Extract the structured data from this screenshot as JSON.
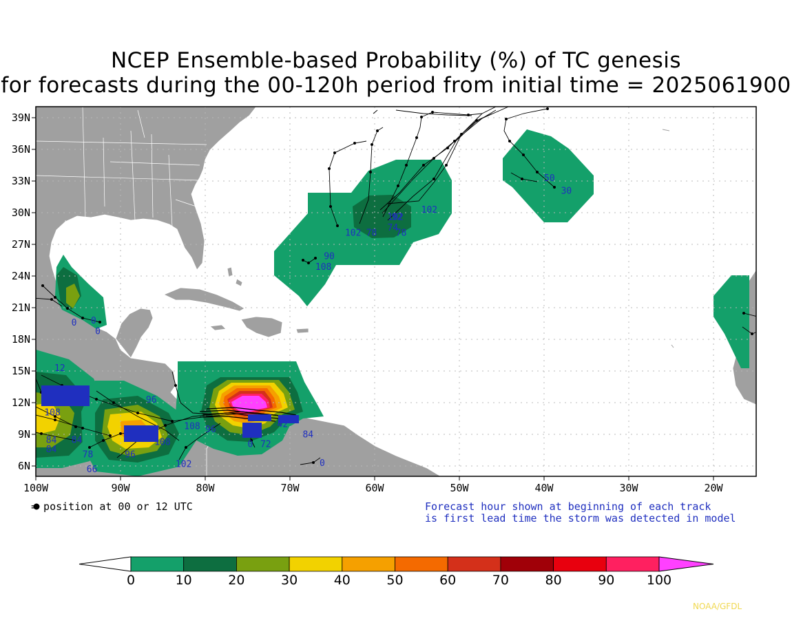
{
  "title_line1": "NCEP Ensemble-based Probability (%) of TC genesis",
  "title_line2": "for forecasts during the 00-120h period from initial time = 2025061900",
  "lat_labels": [
    "39N",
    "36N",
    "33N",
    "30N",
    "27N",
    "24N",
    "21N",
    "18N",
    "15N",
    "12N",
    "9N",
    "6N"
  ],
  "lon_labels": [
    "100W",
    "90W",
    "80W",
    "70W",
    "60W",
    "50W",
    "40W",
    "30W",
    "20W"
  ],
  "legend_note": "= position at 00 or 12 UTC",
  "forecast_note_line1": "Forecast hour shown at beginning of each track",
  "forecast_note_line2": "is first lead time the storm was detected in model",
  "colorbar": {
    "labels": [
      "0",
      "10",
      "20",
      "30",
      "40",
      "50",
      "60",
      "70",
      "80",
      "90",
      "100"
    ],
    "colors": [
      "#ffffff",
      "#14a06a",
      "#0d6e40",
      "#79a010",
      "#f2d200",
      "#f5a000",
      "#f46a00",
      "#d4301a",
      "#a00008",
      "#e8000e",
      "#ff2060",
      "#ff40ff"
    ]
  },
  "credit": "NOAA/GFDL",
  "track_labels": [
    {
      "text": "102",
      "lon": -63.5,
      "lat": 27.8
    },
    {
      "text": "78",
      "lon": -61.0,
      "lat": 27.8
    },
    {
      "text": "102",
      "lon": -58.5,
      "lat": 29.3
    },
    {
      "text": "92",
      "lon": -58.0,
      "lat": 29.3
    },
    {
      "text": "102",
      "lon": -54.5,
      "lat": 30.0
    },
    {
      "text": "74",
      "lon": -58.5,
      "lat": 28.3
    },
    {
      "text": "78",
      "lon": -57.5,
      "lat": 27.8
    },
    {
      "text": "50",
      "lon": -40.0,
      "lat": 33.0
    },
    {
      "text": "30",
      "lon": -38.0,
      "lat": 31.8
    },
    {
      "text": "90",
      "lon": -66.0,
      "lat": 25.6
    },
    {
      "text": "108",
      "lon": -67.0,
      "lat": 24.6
    },
    {
      "text": "0",
      "lon": -95.8,
      "lat": 19.3
    },
    {
      "text": "0",
      "lon": -93.5,
      "lat": 19.5
    },
    {
      "text": "0",
      "lon": -93.0,
      "lat": 18.5
    },
    {
      "text": "12",
      "lon": -97.8,
      "lat": 15.0
    },
    {
      "text": "108",
      "lon": -99.0,
      "lat": 10.8
    },
    {
      "text": "84",
      "lon": -98.8,
      "lat": 8.2
    },
    {
      "text": "84",
      "lon": -95.8,
      "lat": 8.2
    },
    {
      "text": "84",
      "lon": -98.8,
      "lat": 7.3
    },
    {
      "text": "78",
      "lon": -94.5,
      "lat": 6.8
    },
    {
      "text": "66",
      "lon": -94.0,
      "lat": 5.4
    },
    {
      "text": "96",
      "lon": -89.5,
      "lat": 6.8
    },
    {
      "text": "96",
      "lon": -87.0,
      "lat": 12.0
    },
    {
      "text": "108",
      "lon": -86.0,
      "lat": 8.0
    },
    {
      "text": "102",
      "lon": -83.5,
      "lat": 5.9
    },
    {
      "text": "108",
      "lon": -82.5,
      "lat": 9.5
    },
    {
      "text": "96",
      "lon": -80.0,
      "lat": 9.2
    },
    {
      "text": "72",
      "lon": -73.5,
      "lat": 7.8
    },
    {
      "text": "0",
      "lon": -75.0,
      "lat": 7.8
    },
    {
      "text": "84",
      "lon": -68.5,
      "lat": 8.7
    },
    {
      "text": "42",
      "lon": -71.5,
      "lat": 9.7
    },
    {
      "text": "0",
      "lon": -66.5,
      "lat": 6.0
    }
  ]
}
